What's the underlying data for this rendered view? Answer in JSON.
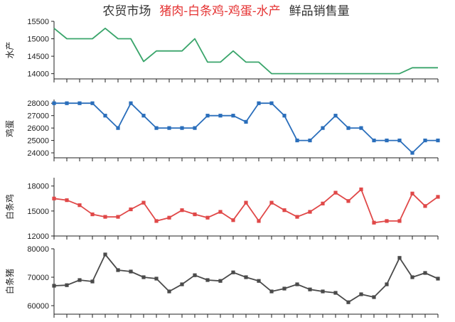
{
  "title": {
    "prefix": "农贸市场",
    "highlight": "猪肉-白条鸡-鸡蛋-水产",
    "suffix": "鲜品销售量",
    "prefix_color": "#333333",
    "highlight_color": "#e53333",
    "suffix_color": "#333333"
  },
  "chart_data": [
    {
      "type": "line",
      "ylabel": "水产",
      "color": "#3aa56b",
      "marker": "none",
      "ylim": [
        13850,
        15500
      ],
      "yticks": [
        14000,
        14500,
        15000,
        15500
      ],
      "ytick_labels": [
        "14000",
        "14500",
        "15000",
        "15500"
      ],
      "values": [
        15300,
        15000,
        15000,
        15000,
        15300,
        15000,
        15000,
        14350,
        14650,
        14650,
        14650,
        15000,
        14330,
        14330,
        14650,
        14330,
        14330,
        14000,
        14000,
        14000,
        14000,
        14000,
        14000,
        14000,
        14000,
        14000,
        14000,
        14000,
        14170,
        14170,
        14170
      ]
    },
    {
      "type": "line",
      "ylabel": "鸡蛋",
      "color": "#2a6ebb",
      "marker": "square",
      "ylim": [
        23600,
        28300
      ],
      "yticks": [
        24000,
        25000,
        26000,
        27000,
        28000
      ],
      "ytick_labels": [
        "24000",
        "25000",
        "26000",
        "27000",
        "28000"
      ],
      "values": [
        28000,
        28000,
        28000,
        28000,
        27000,
        26000,
        28000,
        27000,
        26000,
        26000,
        26000,
        26000,
        27000,
        27000,
        27000,
        26500,
        28000,
        28000,
        27000,
        25000,
        25000,
        26000,
        27000,
        26000,
        26000,
        25000,
        25000,
        25000,
        24000,
        25000,
        25000
      ]
    },
    {
      "type": "line",
      "ylabel": "白条鸡",
      "color": "#e04848",
      "marker": "square",
      "ylim": [
        12000,
        19000
      ],
      "yticks": [
        12000,
        15000,
        18000
      ],
      "ytick_labels": [
        "12000",
        "15000",
        "18000"
      ],
      "values": [
        16500,
        16300,
        15700,
        14600,
        14300,
        14300,
        15200,
        16000,
        13800,
        14200,
        15100,
        14600,
        14200,
        14900,
        13900,
        16000,
        13800,
        16000,
        15100,
        14300,
        14900,
        15900,
        17200,
        16200,
        17600,
        13600,
        13800,
        13800,
        17100,
        15600,
        16700
      ]
    },
    {
      "type": "line",
      "ylabel": "白条猪",
      "color": "#4a4a4a",
      "marker": "square",
      "ylim": [
        57000,
        80000
      ],
      "yticks": [
        60000,
        70000,
        80000
      ],
      "ytick_labels": [
        "60000",
        "70000",
        "80000"
      ],
      "values": [
        67000,
        67200,
        69000,
        68500,
        78000,
        72500,
        72000,
        70000,
        69500,
        65000,
        67500,
        70700,
        69000,
        68700,
        71700,
        70000,
        68700,
        65000,
        66000,
        67500,
        65700,
        65000,
        64500,
        61200,
        64000,
        63000,
        67500,
        76800,
        70000,
        71500,
        69500
      ]
    }
  ]
}
